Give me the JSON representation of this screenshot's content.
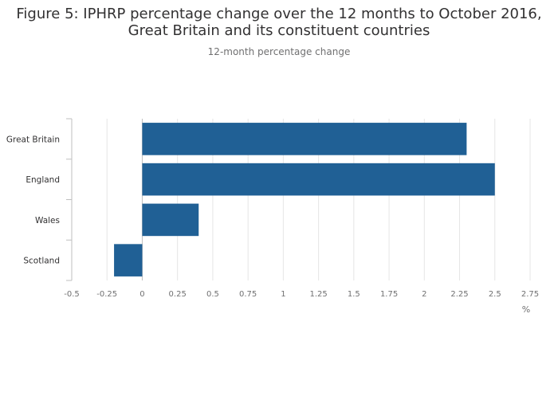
{
  "chart_data": {
    "type": "bar",
    "orientation": "horizontal",
    "title_line1": "Figure 5: IPHRP percentage change over the 12 months to October 2016,",
    "title_line2": "Great Britain and its constituent countries",
    "subtitle": "12-month percentage change",
    "xlabel": "%",
    "ylabel": "",
    "categories": [
      "Great Britain",
      "England",
      "Wales",
      "Scotland"
    ],
    "values": [
      2.3,
      2.5,
      0.4,
      -0.2
    ],
    "xlim": [
      -0.5,
      2.75
    ],
    "xticks": [
      -0.5,
      -0.25,
      0,
      0.25,
      0.5,
      0.75,
      1,
      1.25,
      1.5,
      1.75,
      2,
      2.25,
      2.5,
      2.75
    ],
    "xtick_labels": [
      "-0.5",
      "-0.25",
      "0",
      "0.25",
      "0.5",
      "0.75",
      "1",
      "1.25",
      "1.5",
      "1.75",
      "2",
      "2.25",
      "2.5",
      "2.75"
    ],
    "bar_color": "#206095",
    "grid": true,
    "legend": "none"
  }
}
